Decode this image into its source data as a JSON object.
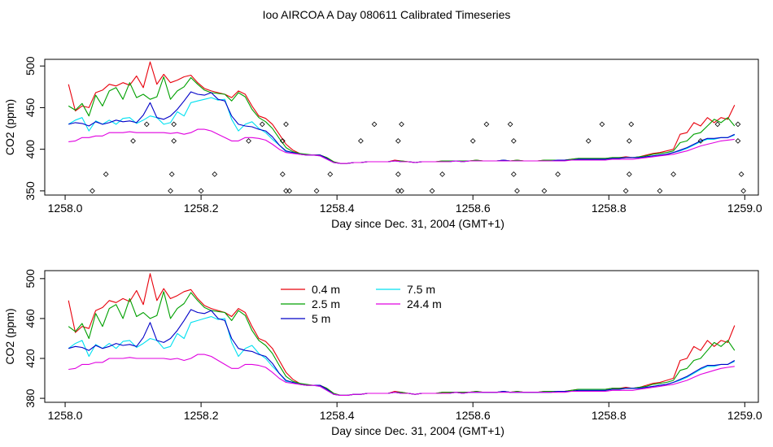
{
  "title": "Ioo AIRCOA A  Day 080611  Calibrated Timeseries",
  "colors": {
    "0.4 m": "#e8000b",
    "2.5 m": "#00a000",
    "5 m": "#0000c8",
    "7.5 m": "#00e0f0",
    "24.4 m": "#e000e0"
  },
  "chart_data": [
    {
      "type": "line",
      "title": "",
      "xlabel": "Day since Dec. 31, 2004 (GMT+1)",
      "ylabel": "CO2 (ppm)",
      "xlim": [
        1257.97,
        1259.02
      ],
      "ylim": [
        345,
        508
      ],
      "xticks": [
        "1258.0",
        "1258.2",
        "1258.4",
        "1258.6",
        "1258.8",
        "1259.0"
      ],
      "yticks": [
        "350",
        "400",
        "450",
        "500"
      ],
      "grid": false,
      "legend": "none",
      "markers": {
        "symbol": "diamond",
        "x": [
          1258.04,
          1258.06,
          1258.1,
          1258.12,
          1258.155,
          1258.157,
          1258.16,
          1258.16,
          1258.2,
          1258.22,
          1258.27,
          1258.29,
          1258.32,
          1258.32,
          1258.325,
          1258.325,
          1258.33,
          1258.37,
          1258.39,
          1258.435,
          1258.455,
          1258.49,
          1258.49,
          1258.49,
          1258.495,
          1258.495,
          1258.54,
          1258.555,
          1258.6,
          1258.62,
          1258.655,
          1258.66,
          1258.66,
          1258.665,
          1258.705,
          1258.725,
          1258.77,
          1258.79,
          1258.825,
          1258.83,
          1258.83,
          1258.833,
          1258.875,
          1258.895,
          1258.935,
          1258.96,
          1258.99,
          1258.99,
          1258.995,
          1258.998
        ],
        "y": [
          350,
          370,
          410,
          430,
          350,
          370,
          410,
          430,
          350,
          370,
          410,
          430,
          370,
          410,
          350,
          430,
          350,
          350,
          370,
          410,
          430,
          350,
          370,
          410,
          430,
          350,
          350,
          370,
          410,
          430,
          430,
          410,
          370,
          350,
          350,
          370,
          410,
          430,
          350,
          370,
          410,
          430,
          350,
          370,
          410,
          430,
          430,
          410,
          370,
          350
        ]
      },
      "x": [
        1258.005,
        1258.015,
        1258.025,
        1258.035,
        1258.045,
        1258.055,
        1258.065,
        1258.075,
        1258.085,
        1258.095,
        1258.105,
        1258.115,
        1258.125,
        1258.135,
        1258.145,
        1258.155,
        1258.165,
        1258.175,
        1258.185,
        1258.195,
        1258.205,
        1258.215,
        1258.225,
        1258.235,
        1258.245,
        1258.255,
        1258.265,
        1258.275,
        1258.285,
        1258.295,
        1258.305,
        1258.315,
        1258.325,
        1258.335,
        1258.345,
        1258.355,
        1258.365,
        1258.375,
        1258.385,
        1258.395,
        1258.405,
        1258.415,
        1258.425,
        1258.435,
        1258.445,
        1258.455,
        1258.465,
        1258.475,
        1258.485,
        1258.495,
        1258.505,
        1258.515,
        1258.525,
        1258.535,
        1258.545,
        1258.555,
        1258.565,
        1258.575,
        1258.585,
        1258.595,
        1258.605,
        1258.615,
        1258.625,
        1258.635,
        1258.645,
        1258.655,
        1258.665,
        1258.675,
        1258.685,
        1258.695,
        1258.705,
        1258.715,
        1258.725,
        1258.735,
        1258.745,
        1258.755,
        1258.765,
        1258.775,
        1258.785,
        1258.795,
        1258.805,
        1258.815,
        1258.825,
        1258.835,
        1258.845,
        1258.855,
        1258.865,
        1258.875,
        1258.885,
        1258.895,
        1258.905,
        1258.915,
        1258.925,
        1258.935,
        1258.945,
        1258.955,
        1258.965,
        1258.975,
        1258.985
      ],
      "series": [
        {
          "name": "0.4 m",
          "values": [
            478,
            446,
            452,
            450,
            468,
            471,
            478,
            476,
            480,
            477,
            488,
            474,
            505,
            478,
            490,
            480,
            483,
            487,
            489,
            480,
            473,
            470,
            468,
            466,
            462,
            470,
            466,
            452,
            440,
            437,
            430,
            418,
            406,
            399,
            395,
            393,
            393,
            393,
            390,
            385,
            383,
            383,
            384,
            384,
            385,
            385,
            385,
            385,
            387,
            386,
            385,
            384,
            385,
            385,
            385,
            386,
            386,
            386,
            386,
            386,
            387,
            386,
            386,
            386,
            387,
            386,
            387,
            386,
            386,
            386,
            387,
            387,
            387,
            387,
            388,
            389,
            389,
            389,
            389,
            389,
            390,
            390,
            391,
            390,
            391,
            393,
            395,
            396,
            398,
            400,
            418,
            420,
            432,
            428,
            438,
            432,
            438,
            436,
            453
          ]
        },
        {
          "name": "2.5 m",
          "values": [
            452,
            447,
            455,
            440,
            465,
            452,
            470,
            474,
            460,
            480,
            462,
            466,
            460,
            463,
            487,
            460,
            470,
            475,
            486,
            478,
            471,
            468,
            467,
            466,
            458,
            468,
            463,
            448,
            438,
            433,
            425,
            413,
            402,
            397,
            395,
            394,
            393,
            393,
            390,
            385,
            383,
            383,
            384,
            384,
            385,
            385,
            385,
            385,
            386,
            386,
            385,
            384,
            385,
            385,
            385,
            386,
            386,
            386,
            386,
            386,
            387,
            386,
            386,
            386,
            387,
            386,
            387,
            386,
            386,
            386,
            387,
            387,
            387,
            387,
            388,
            389,
            389,
            389,
            389,
            389,
            390,
            390,
            390,
            390,
            391,
            392,
            394,
            395,
            396,
            398,
            408,
            410,
            418,
            420,
            428,
            436,
            432,
            438,
            428
          ]
        },
        {
          "name": "5 m",
          "values": [
            430,
            432,
            431,
            428,
            433,
            430,
            432,
            435,
            433,
            434,
            432,
            441,
            456,
            438,
            436,
            440,
            448,
            458,
            469,
            466,
            465,
            468,
            460,
            458,
            440,
            430,
            428,
            427,
            424,
            422,
            415,
            405,
            398,
            396,
            394,
            393,
            393,
            393,
            389,
            384,
            383,
            383,
            384,
            384,
            385,
            385,
            385,
            385,
            386,
            385,
            385,
            384,
            385,
            385,
            385,
            385,
            385,
            386,
            385,
            386,
            386,
            386,
            386,
            386,
            387,
            386,
            386,
            386,
            386,
            386,
            386,
            386,
            387,
            387,
            387,
            388,
            388,
            388,
            388,
            388,
            389,
            389,
            390,
            390,
            390,
            391,
            392,
            393,
            394,
            396,
            399,
            402,
            406,
            410,
            413,
            413,
            414,
            414,
            418
          ]
        },
        {
          "name": "7.5 m",
          "values": [
            430,
            435,
            438,
            422,
            434,
            430,
            435,
            430,
            437,
            438,
            431,
            435,
            440,
            438,
            430,
            432,
            445,
            440,
            456,
            458,
            460,
            462,
            459,
            460,
            436,
            422,
            430,
            433,
            425,
            420,
            412,
            405,
            397,
            396,
            394,
            393,
            393,
            392,
            388,
            384,
            383,
            383,
            384,
            384,
            385,
            385,
            385,
            385,
            386,
            385,
            385,
            384,
            385,
            385,
            385,
            385,
            385,
            386,
            385,
            386,
            386,
            386,
            386,
            386,
            387,
            386,
            386,
            386,
            386,
            386,
            386,
            386,
            387,
            387,
            387,
            388,
            388,
            388,
            388,
            388,
            389,
            389,
            390,
            390,
            390,
            391,
            392,
            393,
            394,
            396,
            398,
            401,
            405,
            409,
            412,
            412,
            414,
            414,
            417
          ]
        },
        {
          "name": "24.4 m",
          "values": [
            409,
            410,
            414,
            414,
            416,
            416,
            420,
            420,
            420,
            421,
            420,
            420,
            420,
            420,
            420,
            419,
            420,
            418,
            420,
            424,
            424,
            422,
            418,
            414,
            410,
            410,
            414,
            414,
            413,
            411,
            406,
            400,
            396,
            395,
            394,
            393,
            393,
            392,
            388,
            384,
            383,
            383,
            384,
            384,
            385,
            385,
            385,
            385,
            386,
            385,
            385,
            384,
            385,
            385,
            385,
            385,
            385,
            386,
            385,
            386,
            386,
            386,
            386,
            386,
            386,
            386,
            386,
            386,
            386,
            386,
            386,
            386,
            386,
            386,
            387,
            387,
            387,
            387,
            387,
            387,
            388,
            388,
            388,
            388,
            389,
            390,
            391,
            392,
            393,
            394,
            396,
            398,
            401,
            404,
            406,
            408,
            410,
            411,
            412
          ]
        }
      ]
    },
    {
      "type": "line",
      "title": "",
      "xlabel": "Day since Dec. 31, 2004 (GMT+1)",
      "ylabel": "CO2 (ppm)",
      "xlim": [
        1257.97,
        1259.02
      ],
      "ylim": [
        376,
        508
      ],
      "xticks": [
        "1258.0",
        "1258.2",
        "1258.4",
        "1258.6",
        "1258.8",
        "1259.0"
      ],
      "yticks": [
        "380",
        "420",
        "460",
        "500"
      ],
      "grid": false,
      "legend": "top-left",
      "legend_labels": [
        "0.4 m",
        "2.5 m",
        "5 m",
        "7.5 m",
        "24.4 m"
      ]
    }
  ]
}
